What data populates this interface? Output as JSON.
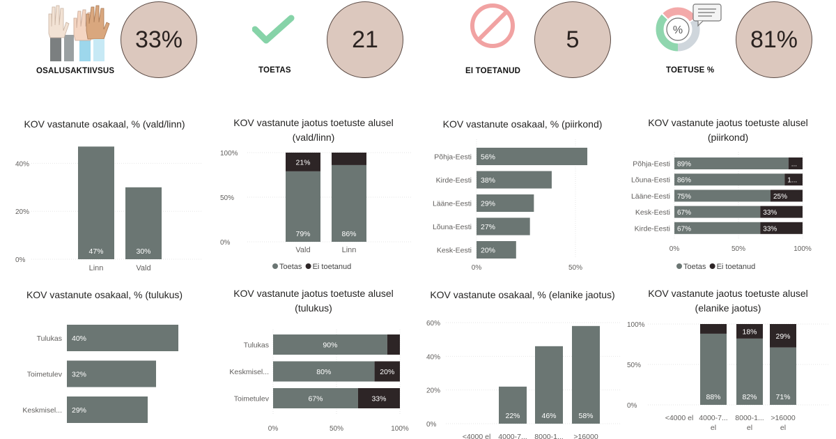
{
  "kpis": [
    {
      "label": "OSALUSAKTIIVSUS",
      "value": "33%",
      "icon": "raised-hands-icon"
    },
    {
      "label": "TOETAS",
      "value": "21",
      "icon": "checkmark-icon"
    },
    {
      "label": "EI TOETANUD",
      "value": "5",
      "icon": "prohibited-icon"
    },
    {
      "label": "TOETUSE %",
      "value": "81%",
      "icon": "percent-donut-chat-icon"
    }
  ],
  "colors": {
    "toetas": "#6b7673",
    "ei_toetanud": "#2d2526",
    "kpi_circle": "#dcc8be"
  },
  "chart_data": [
    {
      "id": "c1",
      "type": "bar",
      "title": "KOV vastanute osakaal, % (vald/linn)",
      "categories": [
        "Linn",
        "Vald"
      ],
      "values": [
        47,
        30
      ],
      "value_labels": [
        "47%",
        "30%"
      ],
      "yticks": [
        "0%",
        "20%",
        "40%"
      ],
      "ylim": [
        0,
        50
      ],
      "grid": true
    },
    {
      "id": "c2",
      "type": "bar",
      "stacked": true,
      "title": "KOV vastanute jaotus toetuste alusel (vald/linn)",
      "categories": [
        "Vald",
        "Linn"
      ],
      "series": [
        {
          "name": "Toetas",
          "values": [
            79,
            86
          ],
          "labels": [
            "79%",
            "86%"
          ]
        },
        {
          "name": "Ei toetanud",
          "values": [
            21,
            14
          ],
          "labels": [
            "21%",
            ""
          ]
        }
      ],
      "yticks": [
        "0%",
        "50%",
        "100%"
      ],
      "legend": [
        "Toetas",
        "Ei toetanud"
      ],
      "legend_position": "bottom"
    },
    {
      "id": "c3",
      "type": "bar",
      "orientation": "horizontal",
      "title": "KOV vastanute osakaal, % (piirkond)",
      "categories": [
        "Põhja-Eesti",
        "Kirde-Eesti",
        "Lääne-Eesti",
        "Lõuna-Eesti",
        "Kesk-Eesti"
      ],
      "values": [
        56,
        38,
        29,
        27,
        20
      ],
      "value_labels": [
        "56%",
        "38%",
        "29%",
        "27%",
        "20%"
      ],
      "xticks": [
        "0%",
        "50%"
      ],
      "xlim": [
        0,
        60
      ]
    },
    {
      "id": "c4",
      "type": "bar",
      "orientation": "horizontal",
      "stacked": true,
      "title": "KOV vastanute jaotus toetuste alusel (piirkond)",
      "categories": [
        "Põhja-Eesti",
        "Lõuna-Eesti",
        "Lääne-Eesti",
        "Kesk-Eesti",
        "Kirde-Eesti"
      ],
      "series": [
        {
          "name": "Toetas",
          "values": [
            89,
            86,
            75,
            67,
            67
          ],
          "labels": [
            "89%",
            "86%",
            "75%",
            "67%",
            "67%"
          ]
        },
        {
          "name": "Ei toetanud",
          "values": [
            11,
            14,
            25,
            33,
            33
          ],
          "labels": [
            "...",
            "1...",
            "25%",
            "33%",
            "33%"
          ]
        }
      ],
      "xticks": [
        "0%",
        "50%",
        "100%"
      ],
      "legend": [
        "Toetas",
        "Ei toetanud"
      ],
      "legend_position": "bottom"
    },
    {
      "id": "c5",
      "type": "bar",
      "orientation": "horizontal",
      "title": "KOV vastanute osakaal, % (tulukus)",
      "categories": [
        "Tulukas",
        "Toimetulev",
        "Keskmisel..."
      ],
      "values": [
        40,
        32,
        29
      ],
      "value_labels": [
        "40%",
        "32%",
        "29%"
      ],
      "xlim": [
        0,
        40
      ]
    },
    {
      "id": "c6",
      "type": "bar",
      "orientation": "horizontal",
      "stacked": true,
      "title": "KOV vastanute jaotus toetuste alusel (tulukus)",
      "categories": [
        "Tulukas",
        "Keskmisel...",
        "Toimetulev"
      ],
      "series": [
        {
          "name": "Toetas",
          "values": [
            90,
            80,
            67
          ],
          "labels": [
            "90%",
            "80%",
            "67%"
          ]
        },
        {
          "name": "Ei toetanud",
          "values": [
            10,
            20,
            33
          ],
          "labels": [
            "",
            "20%",
            "33%"
          ]
        }
      ],
      "xticks": [
        "0%",
        "50%",
        "100%"
      ]
    },
    {
      "id": "c7",
      "type": "bar",
      "title": "KOV vastanute osakaal, % (elanike jaotus)",
      "categories": [
        "<4000 el",
        "4000-7...",
        "8000-1...",
        ">16000"
      ],
      "values": [
        0,
        22,
        46,
        58
      ],
      "value_labels": [
        "",
        "22%",
        "46%",
        "58%"
      ],
      "yticks": [
        "0%",
        "20%",
        "40%",
        "60%"
      ],
      "ylim": [
        0,
        60
      ]
    },
    {
      "id": "c8",
      "type": "bar",
      "stacked": true,
      "title": "KOV vastanute jaotus toetuste alusel (elanike jaotus)",
      "categories": [
        "<4000 el",
        "4000-7... el",
        "8000-1... el",
        ">16000 el"
      ],
      "series": [
        {
          "name": "Toetas",
          "values": [
            0,
            88,
            82,
            71
          ],
          "labels": [
            "",
            "88%",
            "82%",
            "71%"
          ]
        },
        {
          "name": "Ei toetanud",
          "values": [
            0,
            12,
            18,
            29
          ],
          "labels": [
            "",
            "",
            "18%",
            "29%"
          ]
        }
      ],
      "yticks": [
        "0%",
        "50%",
        "100%"
      ]
    }
  ]
}
